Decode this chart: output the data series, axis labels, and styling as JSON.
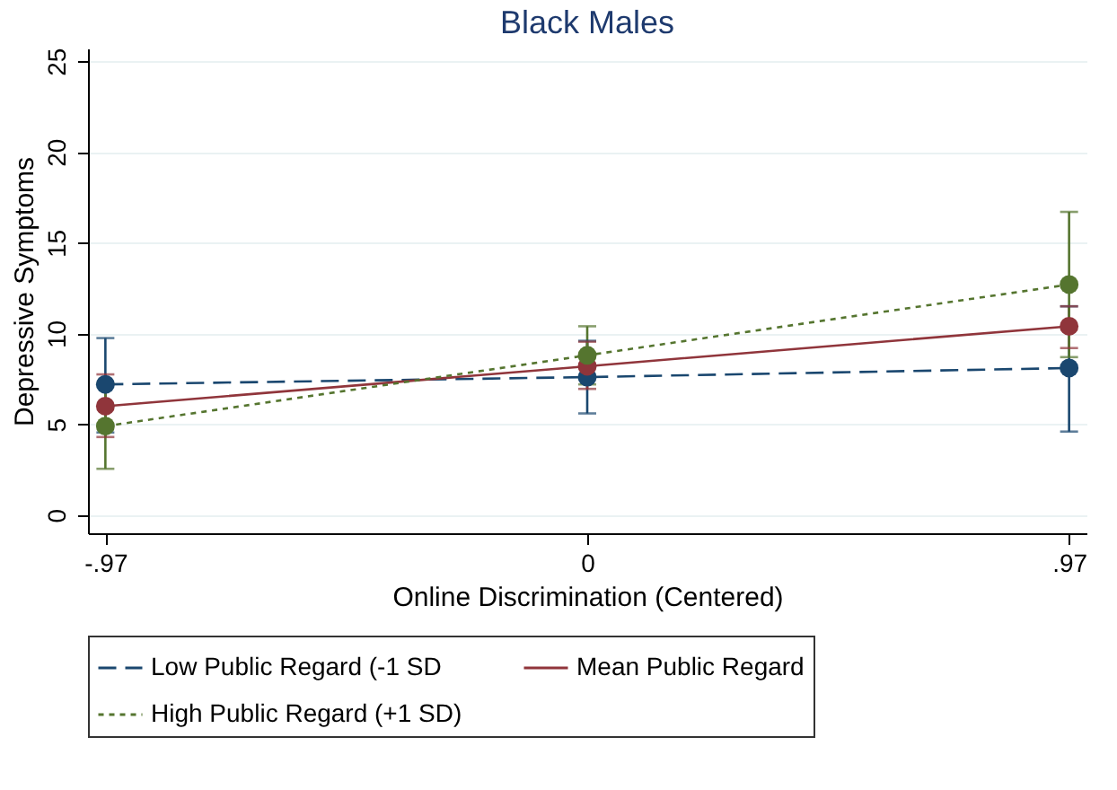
{
  "chart_data": {
    "type": "line",
    "title": "Black Males",
    "xlabel": "Online Discrimination (Centered)",
    "ylabel": "Depressive Symptoms",
    "x": [
      -0.97,
      0,
      0.97
    ],
    "series": [
      {
        "name": "Low Public Regard (-1 SD",
        "color": "#1a476f",
        "line_style": "dashed",
        "values": [
          7.2,
          7.6,
          8.1
        ],
        "errors": [
          [
            4.55,
            9.75
          ],
          [
            5.6,
            9.6
          ],
          [
            4.6,
            11.5
          ]
        ]
      },
      {
        "name": "Mean Public Regard",
        "color": "#90353b",
        "line_style": "solid",
        "values": [
          6.0,
          8.2,
          10.4
        ],
        "errors": [
          [
            4.3,
            7.75
          ],
          [
            6.95,
            9.55
          ],
          [
            9.2,
            11.5
          ]
        ]
      },
      {
        "name": "High Public Regard (+1 SD)",
        "color": "#55752f",
        "line_style": "dotted",
        "values": [
          4.9,
          8.8,
          12.7
        ],
        "errors": [
          2.35,
          [
            7.2,
            10.4
          ],
          [
            8.7,
            16.7
          ]
        ]
      }
    ],
    "xlim": [
      -1.005,
      1.005
    ],
    "ylim": [
      -1,
      25.7
    ],
    "xticks": [
      {
        "value": -0.97,
        "label": "-.97"
      },
      0,
      {
        "value": 0.97,
        "label": ".97"
      }
    ],
    "yticks": [
      0,
      5,
      10,
      15,
      20,
      25
    ],
    "grid": "y",
    "legend": "bottom",
    "marker": "circle"
  }
}
